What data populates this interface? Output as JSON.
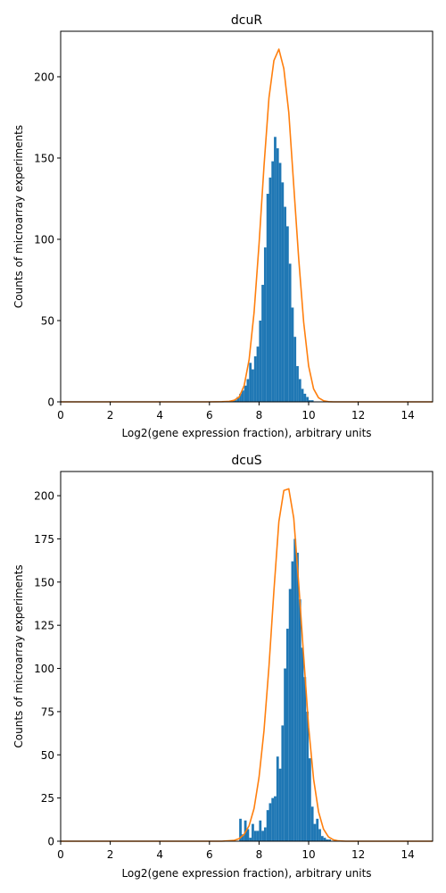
{
  "colors": {
    "bars": "#1f77b4",
    "curve": "#ff7f0e",
    "axes": "#000000",
    "background": "#ffffff"
  },
  "chart_data": [
    {
      "type": "bar",
      "title": "dcuR",
      "xlabel": "Log2(gene expression fraction), arbitrary units",
      "ylabel": "Counts of microarray experiments",
      "xlim": [
        0,
        15
      ],
      "ylim": [
        0,
        228
      ],
      "xticks": [
        0,
        2,
        4,
        6,
        8,
        10,
        12,
        14
      ],
      "yticks": [
        0,
        50,
        100,
        150,
        200
      ],
      "grid": false,
      "bin_width": 0.1,
      "histogram": {
        "name": "",
        "bin_left": [
          6.9,
          7.0,
          7.1,
          7.2,
          7.3,
          7.4,
          7.5,
          7.6,
          7.7,
          7.8,
          7.9,
          8.0,
          8.1,
          8.2,
          8.3,
          8.4,
          8.5,
          8.6,
          8.7,
          8.8,
          8.9,
          9.0,
          9.1,
          9.2,
          9.3,
          9.4,
          9.5,
          9.6,
          9.7,
          9.8,
          9.9,
          10.0,
          10.1
        ],
        "counts": [
          1,
          1,
          3,
          5,
          7,
          10,
          14,
          24,
          20,
          28,
          34,
          50,
          72,
          95,
          128,
          138,
          148,
          163,
          156,
          147,
          135,
          120,
          108,
          85,
          58,
          40,
          22,
          14,
          8,
          5,
          3,
          1,
          1
        ]
      },
      "curve": {
        "name": "",
        "x": [
          0,
          1,
          2,
          3,
          4,
          5,
          6,
          6.5,
          6.8,
          7.0,
          7.2,
          7.4,
          7.6,
          7.8,
          8.0,
          8.2,
          8.4,
          8.6,
          8.8,
          9.0,
          9.2,
          9.4,
          9.6,
          9.8,
          10.0,
          10.2,
          10.4,
          10.6,
          10.8,
          11,
          12,
          13,
          14,
          15
        ],
        "y": [
          0,
          0,
          0,
          0,
          0,
          0,
          0,
          0.1,
          0.3,
          1,
          3,
          10,
          26,
          55,
          97,
          145,
          187,
          210,
          217,
          205,
          178,
          133,
          88,
          49,
          22,
          8,
          2.5,
          0.7,
          0.1,
          0,
          0,
          0,
          0,
          0
        ]
      }
    },
    {
      "type": "bar",
      "title": "dcuS",
      "xlabel": "Log2(gene expression fraction), arbitrary units",
      "ylabel": "Counts of microarray experiments",
      "xlim": [
        0,
        15
      ],
      "ylim": [
        0,
        214
      ],
      "xticks": [
        0,
        2,
        4,
        6,
        8,
        10,
        12,
        14
      ],
      "yticks": [
        0,
        25,
        50,
        75,
        100,
        125,
        150,
        175,
        200
      ],
      "grid": false,
      "bin_width": 0.1,
      "histogram": {
        "name": "",
        "bin_left": [
          7.2,
          7.3,
          7.4,
          7.5,
          7.6,
          7.7,
          7.8,
          7.9,
          8.0,
          8.1,
          8.2,
          8.3,
          8.4,
          8.5,
          8.6,
          8.7,
          8.8,
          8.9,
          9.0,
          9.1,
          9.2,
          9.3,
          9.4,
          9.5,
          9.6,
          9.7,
          9.8,
          9.9,
          10.0,
          10.1,
          10.2,
          10.3,
          10.4,
          10.5,
          10.6,
          10.7,
          10.8
        ],
        "counts": [
          13,
          4,
          12,
          7,
          2,
          10,
          6,
          6,
          12,
          6,
          8,
          18,
          22,
          25,
          26,
          49,
          42,
          67,
          100,
          123,
          146,
          162,
          175,
          167,
          140,
          112,
          95,
          75,
          48,
          20,
          10,
          13,
          7,
          3,
          2,
          1,
          1
        ]
      },
      "curve": {
        "name": "",
        "x": [
          0,
          1,
          2,
          3,
          4,
          5,
          6,
          6.5,
          7.0,
          7.2,
          7.4,
          7.6,
          7.8,
          8.0,
          8.2,
          8.4,
          8.6,
          8.8,
          9.0,
          9.2,
          9.4,
          9.6,
          9.8,
          10.0,
          10.2,
          10.4,
          10.6,
          10.8,
          11.0,
          11.2,
          11.5,
          12,
          13,
          14,
          15
        ],
        "y": [
          0,
          0,
          0,
          0,
          0,
          0,
          0,
          0,
          0.5,
          1.5,
          4,
          9,
          19,
          37,
          64,
          101,
          145,
          185,
          203,
          204,
          187,
          149,
          107,
          66,
          36,
          17,
          7,
          2.5,
          0.8,
          0.2,
          0,
          0,
          0,
          0,
          0
        ]
      }
    }
  ]
}
